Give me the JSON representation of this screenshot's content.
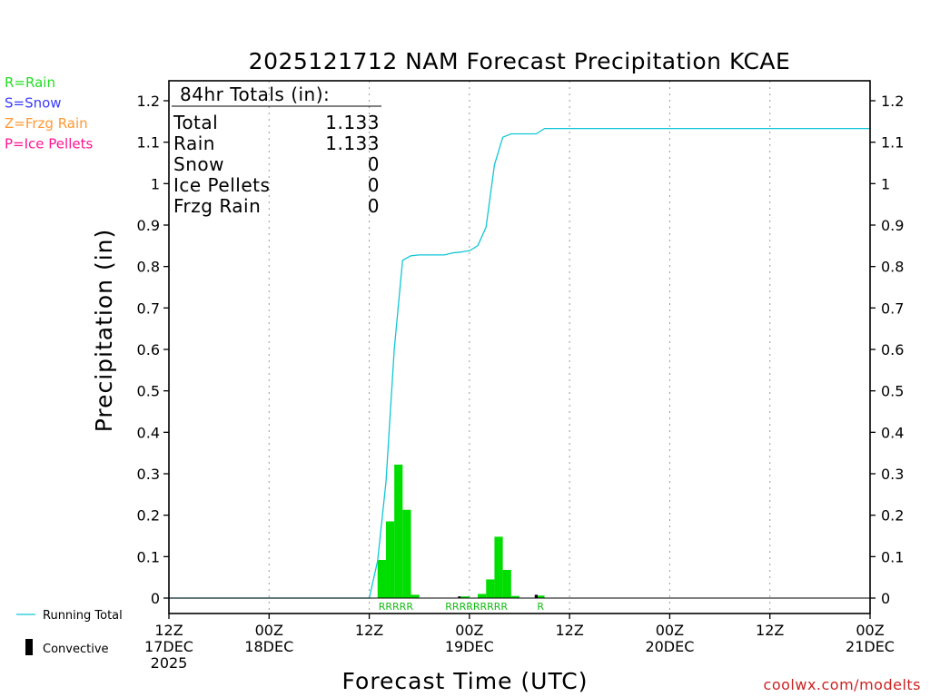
{
  "chart_data": {
    "type": "bar",
    "title": "2025121712 NAM Forecast Precipitation KCAE",
    "xlabel": "Forecast Time (UTC)",
    "ylabel": "Precipitation (in)",
    "ylim": [
      0,
      1.2
    ],
    "xlim_hours": [
      0,
      84
    ],
    "y_ticks": [
      "0",
      "0.1",
      "0.2",
      "0.3",
      "0.4",
      "0.5",
      "0.6",
      "0.7",
      "0.8",
      "0.9",
      "1",
      "1.1",
      "1.2"
    ],
    "x_ticks": [
      {
        "hour": 0,
        "line1": "12Z",
        "line2": "17DEC",
        "line3": "2025"
      },
      {
        "hour": 12,
        "line1": "00Z",
        "line2": "18DEC",
        "line3": ""
      },
      {
        "hour": 24,
        "line1": "12Z",
        "line2": "",
        "line3": ""
      },
      {
        "hour": 36,
        "line1": "00Z",
        "line2": "19DEC",
        "line3": ""
      },
      {
        "hour": 48,
        "line1": "12Z",
        "line2": "",
        "line3": ""
      },
      {
        "hour": 60,
        "line1": "00Z",
        "line2": "20DEC",
        "line3": ""
      },
      {
        "hour": 72,
        "line1": "12Z",
        "line2": "",
        "line3": ""
      },
      {
        "hour": 84,
        "line1": "00Z",
        "line2": "21DEC",
        "line3": ""
      }
    ],
    "series": [
      {
        "name": "Rain",
        "kind": "bar",
        "bar_width_hours": 1,
        "points": [
          {
            "hour": 25,
            "value": 0.092
          },
          {
            "hour": 26,
            "value": 0.185
          },
          {
            "hour": 27,
            "value": 0.322
          },
          {
            "hour": 28,
            "value": 0.213
          },
          {
            "hour": 29,
            "value": 0.008
          },
          {
            "hour": 35,
            "value": 0.004
          },
          {
            "hour": 37,
            "value": 0.01
          },
          {
            "hour": 38,
            "value": 0.045
          },
          {
            "hour": 39,
            "value": 0.148
          },
          {
            "hour": 40,
            "value": 0.068
          },
          {
            "hour": 41,
            "value": 0.005
          },
          {
            "hour": 44,
            "value": 0.006
          }
        ]
      },
      {
        "name": "Convective",
        "kind": "bar",
        "bar_width_hours": 0.35,
        "points": [
          {
            "hour": 34.8,
            "value": 0.004
          },
          {
            "hour": 44.0,
            "value": 0.008
          }
        ]
      },
      {
        "name": "Running Total",
        "kind": "line",
        "points": [
          {
            "hour": 0,
            "value": 0
          },
          {
            "hour": 24,
            "value": 0
          },
          {
            "hour": 25,
            "value": 0.09
          },
          {
            "hour": 26,
            "value": 0.28
          },
          {
            "hour": 27,
            "value": 0.6
          },
          {
            "hour": 28,
            "value": 0.815
          },
          {
            "hour": 29,
            "value": 0.826
          },
          {
            "hour": 30,
            "value": 0.828
          },
          {
            "hour": 32,
            "value": 0.828
          },
          {
            "hour": 33,
            "value": 0.828
          },
          {
            "hour": 34,
            "value": 0.833
          },
          {
            "hour": 35,
            "value": 0.835
          },
          {
            "hour": 36,
            "value": 0.838
          },
          {
            "hour": 37,
            "value": 0.85
          },
          {
            "hour": 38,
            "value": 0.895
          },
          {
            "hour": 39,
            "value": 1.045
          },
          {
            "hour": 40,
            "value": 1.112
          },
          {
            "hour": 41,
            "value": 1.12
          },
          {
            "hour": 42,
            "value": 1.12
          },
          {
            "hour": 44,
            "value": 1.12
          },
          {
            "hour": 45,
            "value": 1.133
          },
          {
            "hour": 84,
            "value": 1.133
          }
        ]
      }
    ],
    "precip_type_labels": [
      {
        "start_hour": 25,
        "text": "RRRRR"
      },
      {
        "start_hour": 33,
        "text": "RRRRRRRRR"
      },
      {
        "start_hour": 44,
        "text": "R"
      }
    ],
    "totals_box": {
      "heading": "84hr Totals (in):",
      "rows": [
        {
          "label": "Total",
          "value": "1.133"
        },
        {
          "label": "Rain",
          "value": "1.133"
        },
        {
          "label": "Snow",
          "value": "0"
        },
        {
          "label": "Ice Pellets",
          "value": "0"
        },
        {
          "label": "Frzg Rain",
          "value": "0"
        }
      ]
    },
    "type_legend": [
      {
        "text": "R=Rain",
        "color": "#22dd22"
      },
      {
        "text": "S=Snow",
        "color": "#3b3bff"
      },
      {
        "text": "Z=Frzg Rain",
        "color": "#ff9933"
      },
      {
        "text": "P=Ice Pellets",
        "color": "#ff1493"
      }
    ],
    "series_legend": {
      "running_total": "Running Total",
      "convective": "Convective"
    },
    "colors": {
      "rain_bar": "#00dd00",
      "running_total_line": "#11c6d6",
      "convective": "#000000",
      "rain_label": "#11bb11",
      "credit": "#cc2222"
    },
    "credit": "coolwx.com/modelts"
  }
}
